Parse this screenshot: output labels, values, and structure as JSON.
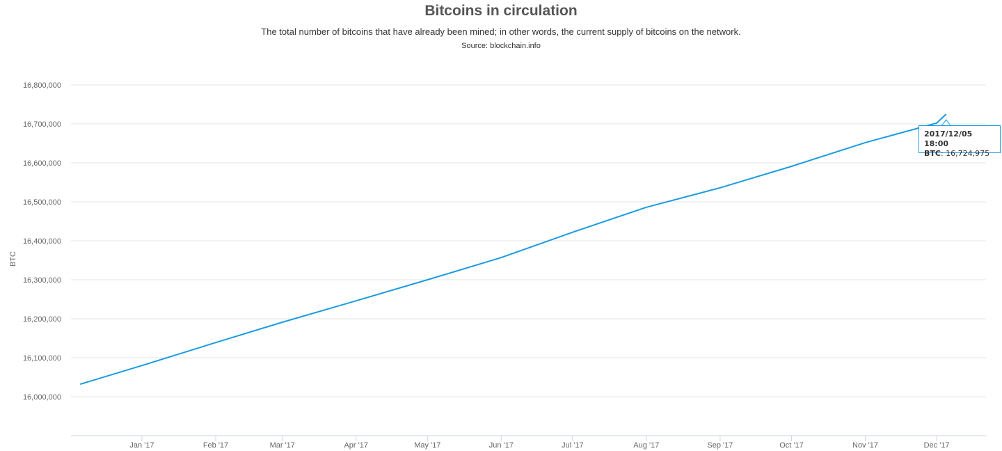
{
  "chart_data": {
    "type": "line",
    "title": "Bitcoins in circulation",
    "subtitle": "The total number of bitcoins that have already been mined; in other words, the current supply of bitcoins on the network.",
    "source": "Source: blockchain.info",
    "xlabel": "",
    "ylabel": "BTC",
    "ylim": [
      16000000,
      16800000
    ],
    "yticks": [
      "16,000,000",
      "16,100,000",
      "16,200,000",
      "16,300,000",
      "16,400,000",
      "16,500,000",
      "16,600,000",
      "16,700,000",
      "16,800,000"
    ],
    "xticks": [
      "Jan '17",
      "Feb '17",
      "Mar '17",
      "Apr '17",
      "May '17",
      "Jun '17",
      "Jul '17",
      "Aug '17",
      "Sep '17",
      "Oct '17",
      "Nov '17",
      "Dec '17"
    ],
    "grid": true,
    "legend": "none",
    "color": "#1a9be0",
    "series": [
      {
        "x": [
          "2016-12-06",
          "2017-01-01",
          "2017-02-01",
          "2017-03-01",
          "2017-04-01",
          "2017-05-01",
          "2017-06-01",
          "2017-07-01",
          "2017-08-01",
          "2017-09-01",
          "2017-10-01",
          "2017-11-01",
          "2017-12-01",
          "2017-12-05"
        ],
        "values": [
          16032000,
          16080000,
          16139000,
          16191000,
          16246000,
          16300000,
          16357000,
          16422000,
          16486000,
          16536000,
          16591000,
          16652000,
          16702000,
          16724975
        ]
      }
    ],
    "tooltip": {
      "date": "2017/12/05 18:00",
      "label": "BTC",
      "value": "16,724,975"
    }
  }
}
